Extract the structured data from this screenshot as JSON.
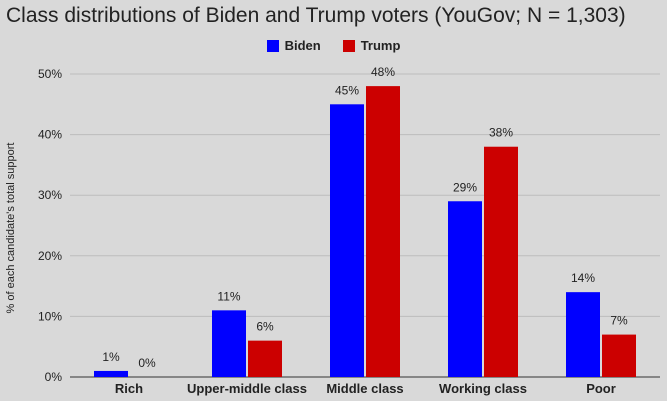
{
  "chart_data": {
    "type": "bar",
    "title": "Class distributions of Biden and Trump voters (YouGov; N = 1,303)",
    "ylabel": "% of each candidate's total support",
    "xlabel": "",
    "categories": [
      "Rich",
      "Upper-middle class",
      "Middle class",
      "Working class",
      "Poor"
    ],
    "series": [
      {
        "name": "Biden",
        "color": "#0000ff",
        "values": [
          1,
          11,
          45,
          29,
          14
        ],
        "labels": [
          "1%",
          "11%",
          "45%",
          "29%",
          "14%"
        ]
      },
      {
        "name": "Trump",
        "color": "#cc0000",
        "values": [
          0,
          6,
          48,
          38,
          7
        ],
        "labels": [
          "0%",
          "6%",
          "48%",
          "38%",
          "7%"
        ]
      }
    ],
    "ylim": [
      0,
      50
    ],
    "yticks": [
      0,
      10,
      20,
      30,
      40,
      50
    ],
    "ytick_labels": [
      "0%",
      "10%",
      "20%",
      "30%",
      "40%",
      "50%"
    ],
    "grid": true,
    "legend_position": "top-center"
  }
}
